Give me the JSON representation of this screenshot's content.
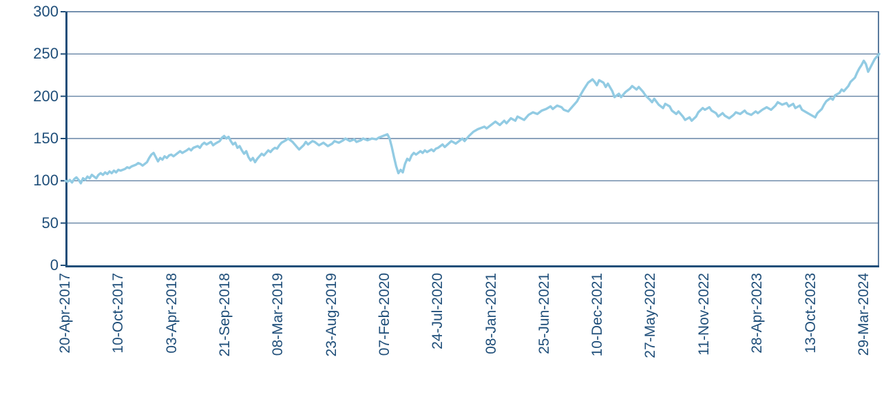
{
  "chart_data": {
    "type": "line",
    "title": "",
    "xlabel": "",
    "ylabel": "",
    "ylim": [
      0,
      300
    ],
    "y_ticks": [
      0,
      50,
      100,
      150,
      200,
      250,
      300
    ],
    "grid": "horizontal",
    "legend": "none",
    "x_tick_labels": [
      "20-Apr-2017",
      "10-Oct-2017",
      "03-Apr-2018",
      "21-Sep-2018",
      "08-Mar-2019",
      "23-Aug-2019",
      "07-Feb-2020",
      "24-Jul-2020",
      "08-Jan-2021",
      "25-Jun-2021",
      "10-Dec-2021",
      "27-May-2022",
      "11-Nov-2022",
      "28-Apr-2023",
      "13-Oct-2023",
      "29-Mar-2024"
    ],
    "x_tick_week_positions": [
      0,
      24.1,
      48.3,
      72.4,
      96.6,
      120.7,
      144.8,
      169.0,
      193.1,
      217.3,
      241.4,
      265.5,
      289.7,
      313.8,
      338.0,
      362.1
    ],
    "x_axis_weeks_span": 369,
    "colors": {
      "line": "#92cbe3",
      "grid": "#476b93",
      "frame": "#476b93",
      "axis": "#1f4e79",
      "label": "#1f4e79",
      "background": "#ffffff"
    },
    "series": [
      {
        "points": [
          [
            0,
            100
          ],
          [
            1,
            99
          ],
          [
            2,
            101
          ],
          [
            3,
            98
          ],
          [
            4,
            102
          ],
          [
            5,
            104
          ],
          [
            6,
            101
          ],
          [
            7,
            97
          ],
          [
            8,
            103
          ],
          [
            9,
            101
          ],
          [
            10,
            105
          ],
          [
            11,
            103
          ],
          [
            12,
            107
          ],
          [
            13,
            105
          ],
          [
            14,
            103
          ],
          [
            15,
            107
          ],
          [
            16,
            109
          ],
          [
            17,
            107
          ],
          [
            18,
            110
          ],
          [
            19,
            108
          ],
          [
            20,
            111
          ],
          [
            21,
            109
          ],
          [
            22,
            112
          ],
          [
            23,
            110
          ],
          [
            24,
            113
          ],
          [
            25,
            112
          ],
          [
            27,
            114
          ],
          [
            28,
            116
          ],
          [
            29,
            115
          ],
          [
            30,
            117
          ],
          [
            32,
            119
          ],
          [
            33,
            121
          ],
          [
            34,
            120
          ],
          [
            35,
            118
          ],
          [
            37,
            122
          ],
          [
            38,
            127
          ],
          [
            39,
            131
          ],
          [
            40,
            133
          ],
          [
            41,
            128
          ],
          [
            42,
            123
          ],
          [
            43,
            127
          ],
          [
            44,
            125
          ],
          [
            45,
            129
          ],
          [
            46,
            127
          ],
          [
            47,
            130
          ],
          [
            48,
            131
          ],
          [
            49,
            129
          ],
          [
            51,
            133
          ],
          [
            52,
            135
          ],
          [
            53,
            133
          ],
          [
            55,
            136
          ],
          [
            56,
            138
          ],
          [
            57,
            136
          ],
          [
            58,
            139
          ],
          [
            60,
            141
          ],
          [
            61,
            139
          ],
          [
            62,
            143
          ],
          [
            63,
            145
          ],
          [
            64,
            143
          ],
          [
            66,
            146
          ],
          [
            67,
            142
          ],
          [
            68,
            144
          ],
          [
            70,
            147
          ],
          [
            71,
            151
          ],
          [
            72,
            153
          ],
          [
            73,
            150
          ],
          [
            74,
            152
          ],
          [
            75,
            147
          ],
          [
            76,
            143
          ],
          [
            77,
            145
          ],
          [
            78,
            139
          ],
          [
            79,
            141
          ],
          [
            80,
            136
          ],
          [
            81,
            132
          ],
          [
            82,
            135
          ],
          [
            83,
            128
          ],
          [
            84,
            124
          ],
          [
            85,
            127
          ],
          [
            86,
            122
          ],
          [
            87,
            126
          ],
          [
            88,
            129
          ],
          [
            89,
            132
          ],
          [
            90,
            130
          ],
          [
            91,
            133
          ],
          [
            92,
            136
          ],
          [
            93,
            134
          ],
          [
            94,
            137
          ],
          [
            95,
            139
          ],
          [
            96,
            138
          ],
          [
            97,
            142
          ],
          [
            98,
            145
          ],
          [
            100,
            148
          ],
          [
            101,
            150
          ],
          [
            103,
            146
          ],
          [
            105,
            140
          ],
          [
            106,
            137
          ],
          [
            108,
            142
          ],
          [
            109,
            146
          ],
          [
            110,
            143
          ],
          [
            112,
            147
          ],
          [
            113,
            146
          ],
          [
            115,
            142
          ],
          [
            117,
            145
          ],
          [
            119,
            141
          ],
          [
            121,
            144
          ],
          [
            122,
            147
          ],
          [
            124,
            145
          ],
          [
            126,
            148
          ],
          [
            127,
            150
          ],
          [
            129,
            147
          ],
          [
            131,
            149
          ],
          [
            132,
            146
          ],
          [
            134,
            148
          ],
          [
            135,
            150
          ],
          [
            137,
            148
          ],
          [
            139,
            150
          ],
          [
            141,
            149
          ],
          [
            142,
            151
          ],
          [
            144,
            153
          ],
          [
            145,
            154
          ],
          [
            146,
            155
          ],
          [
            147,
            150
          ],
          [
            148,
            140
          ],
          [
            149,
            128
          ],
          [
            150,
            117
          ],
          [
            151,
            109
          ],
          [
            152,
            113
          ],
          [
            153,
            110
          ],
          [
            154,
            120
          ],
          [
            155,
            126
          ],
          [
            156,
            124
          ],
          [
            157,
            130
          ],
          [
            158,
            133
          ],
          [
            159,
            131
          ],
          [
            161,
            135
          ],
          [
            162,
            133
          ],
          [
            163,
            136
          ],
          [
            164,
            134
          ],
          [
            166,
            137
          ],
          [
            167,
            135
          ],
          [
            168,
            138
          ],
          [
            169,
            139
          ],
          [
            171,
            143
          ],
          [
            172,
            140
          ],
          [
            175,
            147
          ],
          [
            177,
            144
          ],
          [
            180,
            150
          ],
          [
            181,
            147
          ],
          [
            183,
            153
          ],
          [
            185,
            158
          ],
          [
            187,
            161
          ],
          [
            190,
            164
          ],
          [
            191,
            162
          ],
          [
            193,
            166
          ],
          [
            195,
            170
          ],
          [
            197,
            166
          ],
          [
            199,
            171
          ],
          [
            200,
            168
          ],
          [
            202,
            174
          ],
          [
            204,
            171
          ],
          [
            205,
            176
          ],
          [
            208,
            172
          ],
          [
            210,
            178
          ],
          [
            212,
            181
          ],
          [
            214,
            179
          ],
          [
            216,
            183
          ],
          [
            218,
            185
          ],
          [
            220,
            188
          ],
          [
            221,
            185
          ],
          [
            223,
            189
          ],
          [
            225,
            187
          ],
          [
            226,
            184
          ],
          [
            228,
            182
          ],
          [
            230,
            188
          ],
          [
            232,
            194
          ],
          [
            233,
            199
          ],
          [
            235,
            208
          ],
          [
            237,
            216
          ],
          [
            239,
            220
          ],
          [
            240,
            217
          ],
          [
            241,
            213
          ],
          [
            242,
            219
          ],
          [
            244,
            216
          ],
          [
            245,
            211
          ],
          [
            246,
            215
          ],
          [
            248,
            206
          ],
          [
            249,
            199
          ],
          [
            251,
            203
          ],
          [
            252,
            199
          ],
          [
            254,
            205
          ],
          [
            256,
            209
          ],
          [
            257,
            212
          ],
          [
            259,
            208
          ],
          [
            260,
            211
          ],
          [
            262,
            205
          ],
          [
            263,
            201
          ],
          [
            265,
            196
          ],
          [
            266,
            193
          ],
          [
            267,
            197
          ],
          [
            269,
            190
          ],
          [
            271,
            186
          ],
          [
            272,
            191
          ],
          [
            274,
            188
          ],
          [
            275,
            183
          ],
          [
            277,
            179
          ],
          [
            278,
            182
          ],
          [
            280,
            176
          ],
          [
            281,
            172
          ],
          [
            283,
            175
          ],
          [
            284,
            171
          ],
          [
            286,
            176
          ],
          [
            287,
            181
          ],
          [
            289,
            186
          ],
          [
            290,
            184
          ],
          [
            292,
            187
          ],
          [
            293,
            183
          ],
          [
            295,
            180
          ],
          [
            296,
            176
          ],
          [
            298,
            180
          ],
          [
            299,
            177
          ],
          [
            301,
            174
          ],
          [
            303,
            178
          ],
          [
            304,
            181
          ],
          [
            306,
            179
          ],
          [
            308,
            183
          ],
          [
            309,
            180
          ],
          [
            311,
            178
          ],
          [
            313,
            182
          ],
          [
            314,
            180
          ],
          [
            316,
            184
          ],
          [
            318,
            187
          ],
          [
            320,
            184
          ],
          [
            322,
            189
          ],
          [
            323,
            193
          ],
          [
            325,
            190
          ],
          [
            327,
            192
          ],
          [
            328,
            188
          ],
          [
            330,
            191
          ],
          [
            331,
            186
          ],
          [
            333,
            189
          ],
          [
            334,
            184
          ],
          [
            336,
            181
          ],
          [
            338,
            178
          ],
          [
            340,
            175
          ],
          [
            341,
            180
          ],
          [
            343,
            185
          ],
          [
            344,
            190
          ],
          [
            345,
            194
          ],
          [
            347,
            198
          ],
          [
            348,
            196
          ],
          [
            349,
            201
          ],
          [
            351,
            204
          ],
          [
            352,
            208
          ],
          [
            353,
            206
          ],
          [
            355,
            212
          ],
          [
            356,
            217
          ],
          [
            358,
            222
          ],
          [
            359,
            228
          ],
          [
            360,
            233
          ],
          [
            361,
            237
          ],
          [
            362,
            242
          ],
          [
            363,
            238
          ],
          [
            364,
            229
          ],
          [
            365,
            234
          ],
          [
            366,
            239
          ],
          [
            367,
            244
          ],
          [
            368,
            247
          ],
          [
            369,
            250
          ]
        ]
      }
    ]
  }
}
